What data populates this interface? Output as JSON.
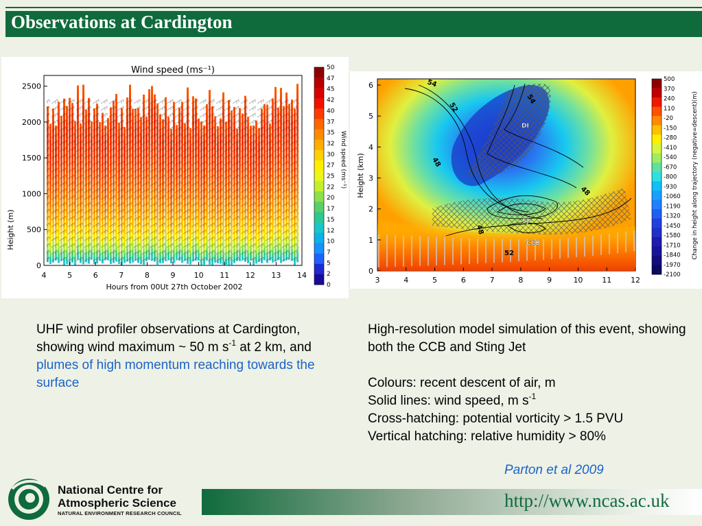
{
  "slide": {
    "title": "Observations at Cardington",
    "url": "http://www.ncas.ac.uk",
    "citation": "Parton et al 2009"
  },
  "logo": {
    "line1": "National Centre for",
    "line2": "Atmospheric Science",
    "line3": "NATURAL ENVIRONMENT RESEARCH COUNCIL",
    "icon": "ncas-swirl-icon"
  },
  "left_caption": {
    "part1": "UHF wind profiler observations at Cardington, showing wind maximum ~ 50 m s",
    "sup": "-1",
    "part2": " at 2 km, and ",
    "highlight": "plumes of high momentum reaching towards the surface"
  },
  "right_caption": {
    "line1": "High-resolution model simulation of this event, showing both the CCB and Sting Jet",
    "line2": "Colours: recent descent of air, m",
    "line3_main": "Solid lines: wind speed, m s",
    "line3_sup": "-1",
    "line4": "Cross-hatching: potential vorticity > 1.5 PVU",
    "line5": "Vertical hatching: relative humidity > 80%"
  },
  "chart_data": [
    {
      "type": "heatmap",
      "title": "Wind speed (ms⁻¹)",
      "xlabel": "Hours from 00Ut 27th October 2002",
      "ylabel": "Height (m)",
      "xticks": [
        "4",
        "5",
        "6",
        "7",
        "8",
        "9",
        "10",
        "11",
        "12",
        "13",
        "14"
      ],
      "yticks": [
        "0",
        "500",
        "1000",
        "1500",
        "2000",
        "2500"
      ],
      "xlim": [
        4,
        14
      ],
      "ylim": [
        0,
        2650
      ],
      "colorbar_label": "Wind speed (ms⁻¹)",
      "colorbar_ticks": [
        "50",
        "47",
        "45",
        "42",
        "40",
        "37",
        "35",
        "32",
        "30",
        "27",
        "25",
        "22",
        "20",
        "17",
        "15",
        "12",
        "10",
        "7",
        "5",
        "2",
        "0"
      ],
      "colors": [
        "#8c0000",
        "#b80000",
        "#d90000",
        "#f01000",
        "#ff3a00",
        "#ff6600",
        "#ff8a00",
        "#ffae00",
        "#ffd000",
        "#ffee00",
        "#ecf51c",
        "#c4ef2e",
        "#8ee04a",
        "#58d068",
        "#2ec890",
        "#18c8c8",
        "#10b0e8",
        "#1890ff",
        "#2060ff",
        "#1c2ad0",
        "#1a0a9a"
      ],
      "features": [
        "wind maximum ~50 m s-1 near 2 km",
        "plumes of high momentum reaching towards the surface"
      ]
    },
    {
      "type": "heatmap",
      "title": "",
      "xlabel": "",
      "ylabel": "Height (km)",
      "xticks": [
        "3",
        "4",
        "5",
        "6",
        "7",
        "8",
        "9",
        "10",
        "11",
        "12"
      ],
      "yticks": [
        "0",
        "1",
        "2",
        "3",
        "4",
        "5",
        "6"
      ],
      "xlim": [
        3,
        12
      ],
      "ylim": [
        0,
        6.2
      ],
      "colorbar_label": "Change in height along trajectory (negative=descent)(m)",
      "colorbar_ticks": [
        "500",
        "370",
        "240",
        "110",
        "-20",
        "-150",
        "-280",
        "-410",
        "-540",
        "-670",
        "-800",
        "-930",
        "-1060",
        "-1190",
        "-1320",
        "-1450",
        "-1580",
        "-1710",
        "-1840",
        "-1970",
        "-2100"
      ],
      "colors": [
        "#8c0000",
        "#c00000",
        "#f01800",
        "#ff5000",
        "#ff8c00",
        "#ffc000",
        "#fff000",
        "#d8f53c",
        "#a0ec60",
        "#60e0a0",
        "#30e0e0",
        "#10c0f8",
        "#18a0ff",
        "#2080ff",
        "#2060f0",
        "#2040e0",
        "#2030c8",
        "#1c1cb0",
        "#181498",
        "#120c80",
        "#0a0a60"
      ],
      "contour_labels": [
        "54",
        "52",
        "48",
        "48",
        "48",
        "52",
        "54"
      ],
      "annotations": [
        "DI",
        "SJ",
        "CCB"
      ]
    }
  ]
}
